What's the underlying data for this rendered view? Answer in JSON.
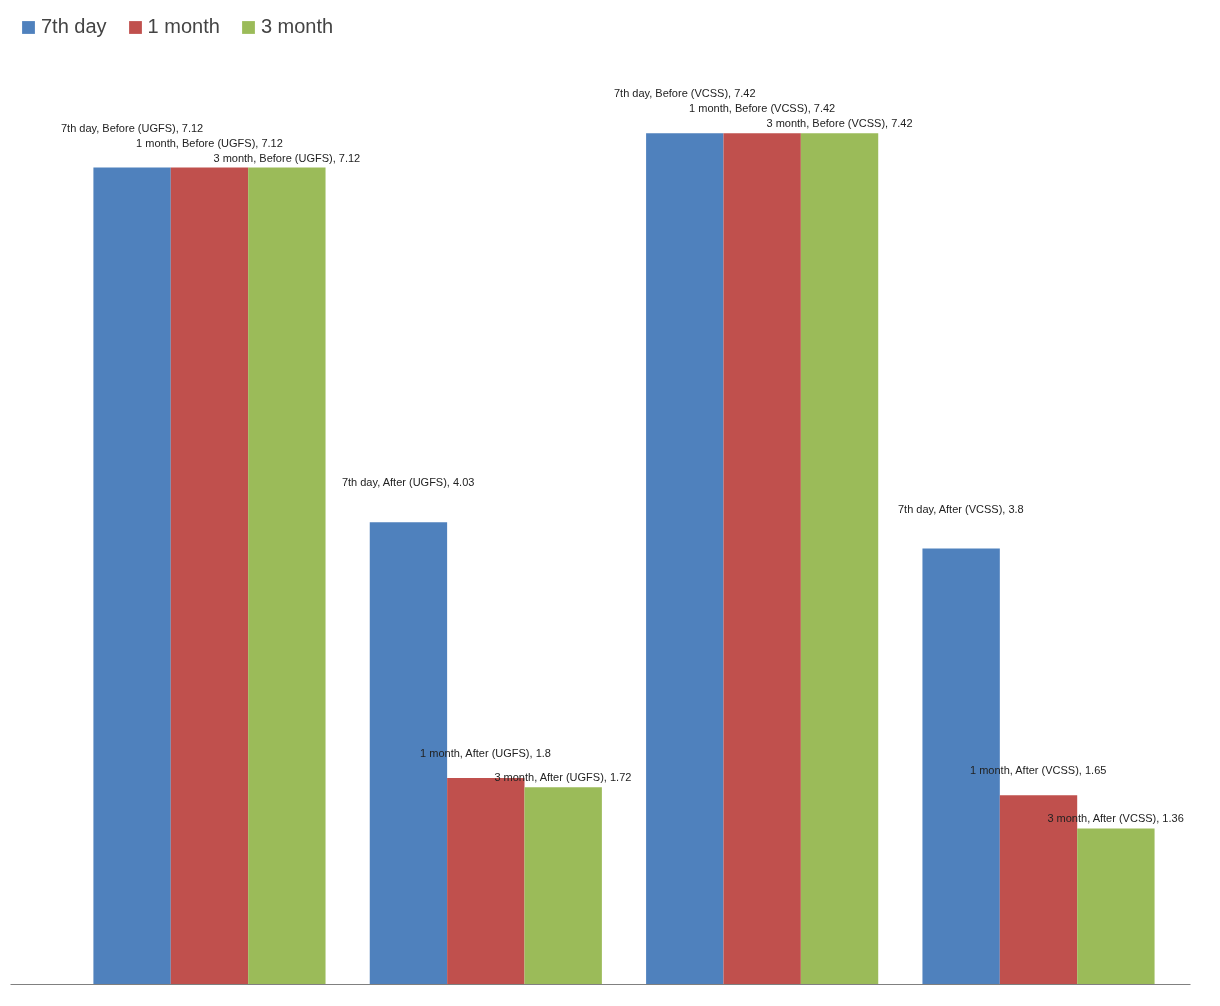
{
  "chart_data": {
    "type": "bar",
    "categories": [
      null,
      null,
      null,
      null
    ],
    "series": [
      {
        "name": "7th day",
        "color": "#4f81bd",
        "values": [
          7.12,
          4.03,
          7.42,
          3.8
        ],
        "value_labels": [
          "7th day, Before (UGFS), 7.12",
          "7th day, After (UGFS), 4.03",
          "7th day, Before (VCSS), 7.42",
          "7th day, After (VCSS), 3.8"
        ]
      },
      {
        "name": "1 month",
        "color": "#c0504d",
        "values": [
          7.12,
          1.8,
          7.42,
          1.65
        ],
        "value_labels": [
          "1 month, Before (UGFS), 7.12",
          "1 month, After (UGFS), 1.8",
          "1 month, Before (VCSS), 7.42",
          "1 month, After (VCSS), 1.65"
        ]
      },
      {
        "name": "3 month",
        "color": "#9bbb59",
        "values": [
          7.12,
          1.72,
          7.42,
          1.36
        ],
        "value_labels": [
          "3 month, Before (UGFS), 7.12",
          "3 month, After (UGFS), 1.72",
          "3 month, Before (VCSS), 7.42",
          "3 month, After (VCSS), 1.36"
        ]
      }
    ],
    "tick_labels": false,
    "grid": false,
    "legend": "top left"
  }
}
